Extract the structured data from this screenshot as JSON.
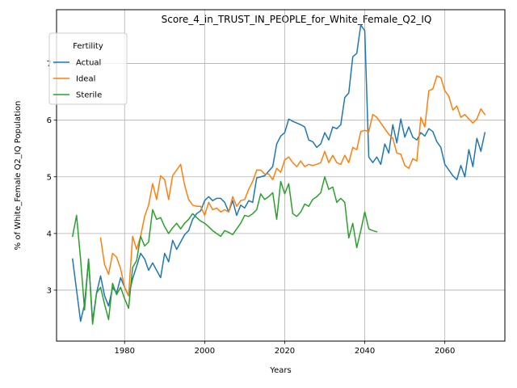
{
  "chart_data": {
    "type": "line",
    "title": "Score_4_in_TRUST_IN_PEOPLE_for_White_Female_Q2_IQ",
    "xlabel": "Years",
    "ylabel": "% of White_Female Q2_IQ Population",
    "xlim": [
      1963,
      2075
    ],
    "ylim": [
      2.1,
      7.95
    ],
    "x_ticks": [
      1980,
      2000,
      2020,
      2040,
      2060
    ],
    "y_ticks": [
      3,
      4,
      5,
      6,
      7
    ],
    "grid": true,
    "legend": {
      "title": "Fertility",
      "placement": "top-left"
    },
    "series": [
      {
        "name": "Actual",
        "color": "#1f77b4",
        "points": [
          [
            1967,
            3.55
          ],
          [
            1968,
            3.0
          ],
          [
            1969,
            2.45
          ],
          [
            1970,
            2.75
          ],
          [
            1971,
            3.55
          ],
          [
            1972,
            2.45
          ],
          [
            1973,
            2.95
          ],
          [
            1974,
            3.25
          ],
          [
            1975,
            2.9
          ],
          [
            1976,
            2.72
          ],
          [
            1977,
            3.05
          ],
          [
            1978,
            2.95
          ],
          [
            1979,
            3.22
          ],
          [
            1980,
            3.05
          ],
          [
            1981,
            2.9
          ],
          [
            1982,
            3.2
          ],
          [
            1983,
            3.42
          ],
          [
            1984,
            3.65
          ],
          [
            1985,
            3.55
          ],
          [
            1986,
            3.35
          ],
          [
            1987,
            3.48
          ],
          [
            1988,
            3.35
          ],
          [
            1989,
            3.22
          ],
          [
            1990,
            3.65
          ],
          [
            1991,
            3.5
          ],
          [
            1992,
            3.88
          ],
          [
            1993,
            3.72
          ],
          [
            1994,
            3.85
          ],
          [
            1995,
            3.98
          ],
          [
            1996,
            4.05
          ],
          [
            1997,
            4.25
          ],
          [
            1998,
            4.35
          ],
          [
            1999,
            4.4
          ],
          [
            2000,
            4.58
          ],
          [
            2001,
            4.65
          ],
          [
            2002,
            4.58
          ],
          [
            2003,
            4.62
          ],
          [
            2004,
            4.62
          ],
          [
            2005,
            4.55
          ],
          [
            2006,
            4.38
          ],
          [
            2007,
            4.58
          ],
          [
            2008,
            4.32
          ],
          [
            2009,
            4.5
          ],
          [
            2010,
            4.45
          ],
          [
            2011,
            4.58
          ],
          [
            2012,
            4.55
          ],
          [
            2013,
            4.98
          ],
          [
            2014,
            5.0
          ],
          [
            2015,
            5.02
          ],
          [
            2016,
            5.1
          ],
          [
            2017,
            5.18
          ],
          [
            2018,
            5.58
          ],
          [
            2019,
            5.72
          ],
          [
            2020,
            5.78
          ],
          [
            2021,
            6.02
          ],
          [
            2022,
            5.98
          ],
          [
            2023,
            5.95
          ],
          [
            2024,
            5.92
          ],
          [
            2025,
            5.88
          ],
          [
            2026,
            5.65
          ],
          [
            2027,
            5.62
          ],
          [
            2028,
            5.52
          ],
          [
            2029,
            5.58
          ],
          [
            2030,
            5.78
          ],
          [
            2031,
            5.65
          ],
          [
            2032,
            5.88
          ],
          [
            2033,
            5.85
          ],
          [
            2034,
            5.92
          ],
          [
            2035,
            6.4
          ],
          [
            2036,
            6.48
          ],
          [
            2037,
            7.12
          ],
          [
            2038,
            7.18
          ],
          [
            2039,
            7.68
          ],
          [
            2040,
            7.58
          ],
          [
            2041,
            5.35
          ],
          [
            2042,
            5.25
          ],
          [
            2043,
            5.35
          ],
          [
            2044,
            5.22
          ],
          [
            2045,
            5.58
          ],
          [
            2046,
            5.42
          ],
          [
            2047,
            5.92
          ],
          [
            2048,
            5.6
          ],
          [
            2049,
            6.02
          ],
          [
            2050,
            5.7
          ],
          [
            2051,
            5.88
          ],
          [
            2052,
            5.7
          ],
          [
            2053,
            5.65
          ],
          [
            2054,
            5.78
          ],
          [
            2055,
            5.72
          ],
          [
            2056,
            5.85
          ],
          [
            2057,
            5.8
          ],
          [
            2058,
            5.62
          ],
          [
            2059,
            5.52
          ],
          [
            2060,
            5.22
          ],
          [
            2061,
            5.12
          ],
          [
            2062,
            5.02
          ],
          [
            2063,
            4.95
          ],
          [
            2064,
            5.2
          ],
          [
            2065,
            5.0
          ],
          [
            2066,
            5.48
          ],
          [
            2067,
            5.18
          ],
          [
            2068,
            5.68
          ],
          [
            2069,
            5.45
          ],
          [
            2070,
            5.78
          ]
        ]
      },
      {
        "name": "Ideal",
        "color": "#ff7f0e",
        "points": [
          [
            1974,
            3.92
          ],
          [
            1975,
            3.45
          ],
          [
            1976,
            3.28
          ],
          [
            1977,
            3.65
          ],
          [
            1978,
            3.58
          ],
          [
            1979,
            3.38
          ],
          [
            1980,
            3.05
          ],
          [
            1981,
            2.9
          ],
          [
            1982,
            3.95
          ],
          [
            1983,
            3.72
          ],
          [
            1984,
            3.95
          ],
          [
            1985,
            4.3
          ],
          [
            1986,
            4.5
          ],
          [
            1987,
            4.88
          ],
          [
            1988,
            4.6
          ],
          [
            1989,
            5.02
          ],
          [
            1990,
            4.95
          ],
          [
            1991,
            4.6
          ],
          [
            1992,
            5.02
          ],
          [
            1993,
            5.12
          ],
          [
            1994,
            5.22
          ],
          [
            1995,
            4.85
          ],
          [
            1996,
            4.6
          ],
          [
            1997,
            4.5
          ],
          [
            1998,
            4.48
          ],
          [
            1999,
            4.48
          ],
          [
            2000,
            4.32
          ],
          [
            2001,
            4.55
          ],
          [
            2002,
            4.42
          ],
          [
            2003,
            4.45
          ],
          [
            2004,
            4.38
          ],
          [
            2005,
            4.42
          ],
          [
            2006,
            4.38
          ],
          [
            2007,
            4.65
          ],
          [
            2008,
            4.48
          ],
          [
            2009,
            4.58
          ],
          [
            2010,
            4.6
          ],
          [
            2011,
            4.78
          ],
          [
            2012,
            4.92
          ],
          [
            2013,
            5.12
          ],
          [
            2014,
            5.12
          ],
          [
            2015,
            5.05
          ],
          [
            2016,
            5.05
          ],
          [
            2017,
            4.95
          ],
          [
            2018,
            5.15
          ],
          [
            2019,
            5.08
          ],
          [
            2020,
            5.3
          ],
          [
            2021,
            5.35
          ],
          [
            2022,
            5.25
          ],
          [
            2023,
            5.18
          ],
          [
            2024,
            5.28
          ],
          [
            2025,
            5.18
          ],
          [
            2026,
            5.22
          ],
          [
            2027,
            5.2
          ],
          [
            2028,
            5.22
          ],
          [
            2029,
            5.25
          ],
          [
            2030,
            5.45
          ],
          [
            2031,
            5.25
          ],
          [
            2032,
            5.38
          ],
          [
            2033,
            5.25
          ],
          [
            2034,
            5.22
          ],
          [
            2035,
            5.38
          ],
          [
            2036,
            5.25
          ],
          [
            2037,
            5.52
          ],
          [
            2038,
            5.48
          ],
          [
            2039,
            5.8
          ],
          [
            2040,
            5.82
          ],
          [
            2041,
            5.8
          ],
          [
            2042,
            6.1
          ],
          [
            2043,
            6.05
          ],
          [
            2044,
            5.95
          ],
          [
            2045,
            5.85
          ],
          [
            2046,
            5.75
          ],
          [
            2047,
            5.68
          ],
          [
            2048,
            5.42
          ],
          [
            2049,
            5.4
          ],
          [
            2050,
            5.2
          ],
          [
            2051,
            5.15
          ],
          [
            2052,
            5.32
          ],
          [
            2053,
            5.28
          ],
          [
            2054,
            6.05
          ],
          [
            2055,
            5.88
          ],
          [
            2056,
            6.52
          ],
          [
            2057,
            6.55
          ],
          [
            2058,
            6.78
          ],
          [
            2059,
            6.75
          ],
          [
            2060,
            6.52
          ],
          [
            2061,
            6.42
          ],
          [
            2062,
            6.18
          ],
          [
            2063,
            6.25
          ],
          [
            2064,
            6.05
          ],
          [
            2065,
            6.1
          ],
          [
            2066,
            6.02
          ],
          [
            2067,
            5.95
          ],
          [
            2068,
            6.02
          ],
          [
            2069,
            6.2
          ],
          [
            2070,
            6.1
          ]
        ]
      },
      {
        "name": "Sterile",
        "color": "#2ca02c",
        "points": [
          [
            1967,
            3.95
          ],
          [
            1968,
            4.32
          ],
          [
            1969,
            3.55
          ],
          [
            1970,
            2.65
          ],
          [
            1971,
            3.55
          ],
          [
            1972,
            2.4
          ],
          [
            1973,
            2.95
          ],
          [
            1974,
            3.05
          ],
          [
            1975,
            2.75
          ],
          [
            1976,
            2.48
          ],
          [
            1977,
            3.12
          ],
          [
            1978,
            2.92
          ],
          [
            1979,
            3.05
          ],
          [
            1980,
            2.85
          ],
          [
            1981,
            2.68
          ],
          [
            1982,
            3.4
          ],
          [
            1983,
            3.52
          ],
          [
            1984,
            3.95
          ],
          [
            1985,
            3.78
          ],
          [
            1986,
            3.85
          ],
          [
            1987,
            4.42
          ],
          [
            1988,
            4.25
          ],
          [
            1989,
            4.28
          ],
          [
            1990,
            4.12
          ],
          [
            1991,
            4.0
          ],
          [
            1992,
            4.1
          ],
          [
            1993,
            4.18
          ],
          [
            1994,
            4.08
          ],
          [
            1995,
            4.18
          ],
          [
            1996,
            4.25
          ],
          [
            1997,
            4.35
          ],
          [
            1998,
            4.28
          ],
          [
            1999,
            4.22
          ],
          [
            2000,
            4.18
          ],
          [
            2001,
            4.12
          ],
          [
            2002,
            4.05
          ],
          [
            2003,
            4.0
          ],
          [
            2004,
            3.95
          ],
          [
            2005,
            4.05
          ],
          [
            2006,
            4.02
          ],
          [
            2007,
            3.98
          ],
          [
            2008,
            4.08
          ],
          [
            2009,
            4.18
          ],
          [
            2010,
            4.32
          ],
          [
            2011,
            4.3
          ],
          [
            2012,
            4.35
          ],
          [
            2013,
            4.42
          ],
          [
            2014,
            4.7
          ],
          [
            2015,
            4.6
          ],
          [
            2016,
            4.65
          ],
          [
            2017,
            4.72
          ],
          [
            2018,
            4.25
          ],
          [
            2019,
            4.92
          ],
          [
            2020,
            4.7
          ],
          [
            2021,
            4.88
          ],
          [
            2022,
            4.35
          ],
          [
            2023,
            4.3
          ],
          [
            2024,
            4.38
          ],
          [
            2025,
            4.52
          ],
          [
            2026,
            4.48
          ],
          [
            2027,
            4.6
          ],
          [
            2028,
            4.65
          ],
          [
            2029,
            4.72
          ],
          [
            2030,
            5.0
          ],
          [
            2031,
            4.78
          ],
          [
            2032,
            4.82
          ],
          [
            2033,
            4.55
          ],
          [
            2034,
            4.62
          ],
          [
            2035,
            4.55
          ],
          [
            2036,
            3.92
          ],
          [
            2037,
            4.18
          ],
          [
            2038,
            3.75
          ],
          [
            2039,
            4.05
          ],
          [
            2040,
            4.38
          ],
          [
            2041,
            4.08
          ],
          [
            2042,
            4.05
          ],
          [
            2043,
            4.03
          ]
        ]
      }
    ]
  }
}
